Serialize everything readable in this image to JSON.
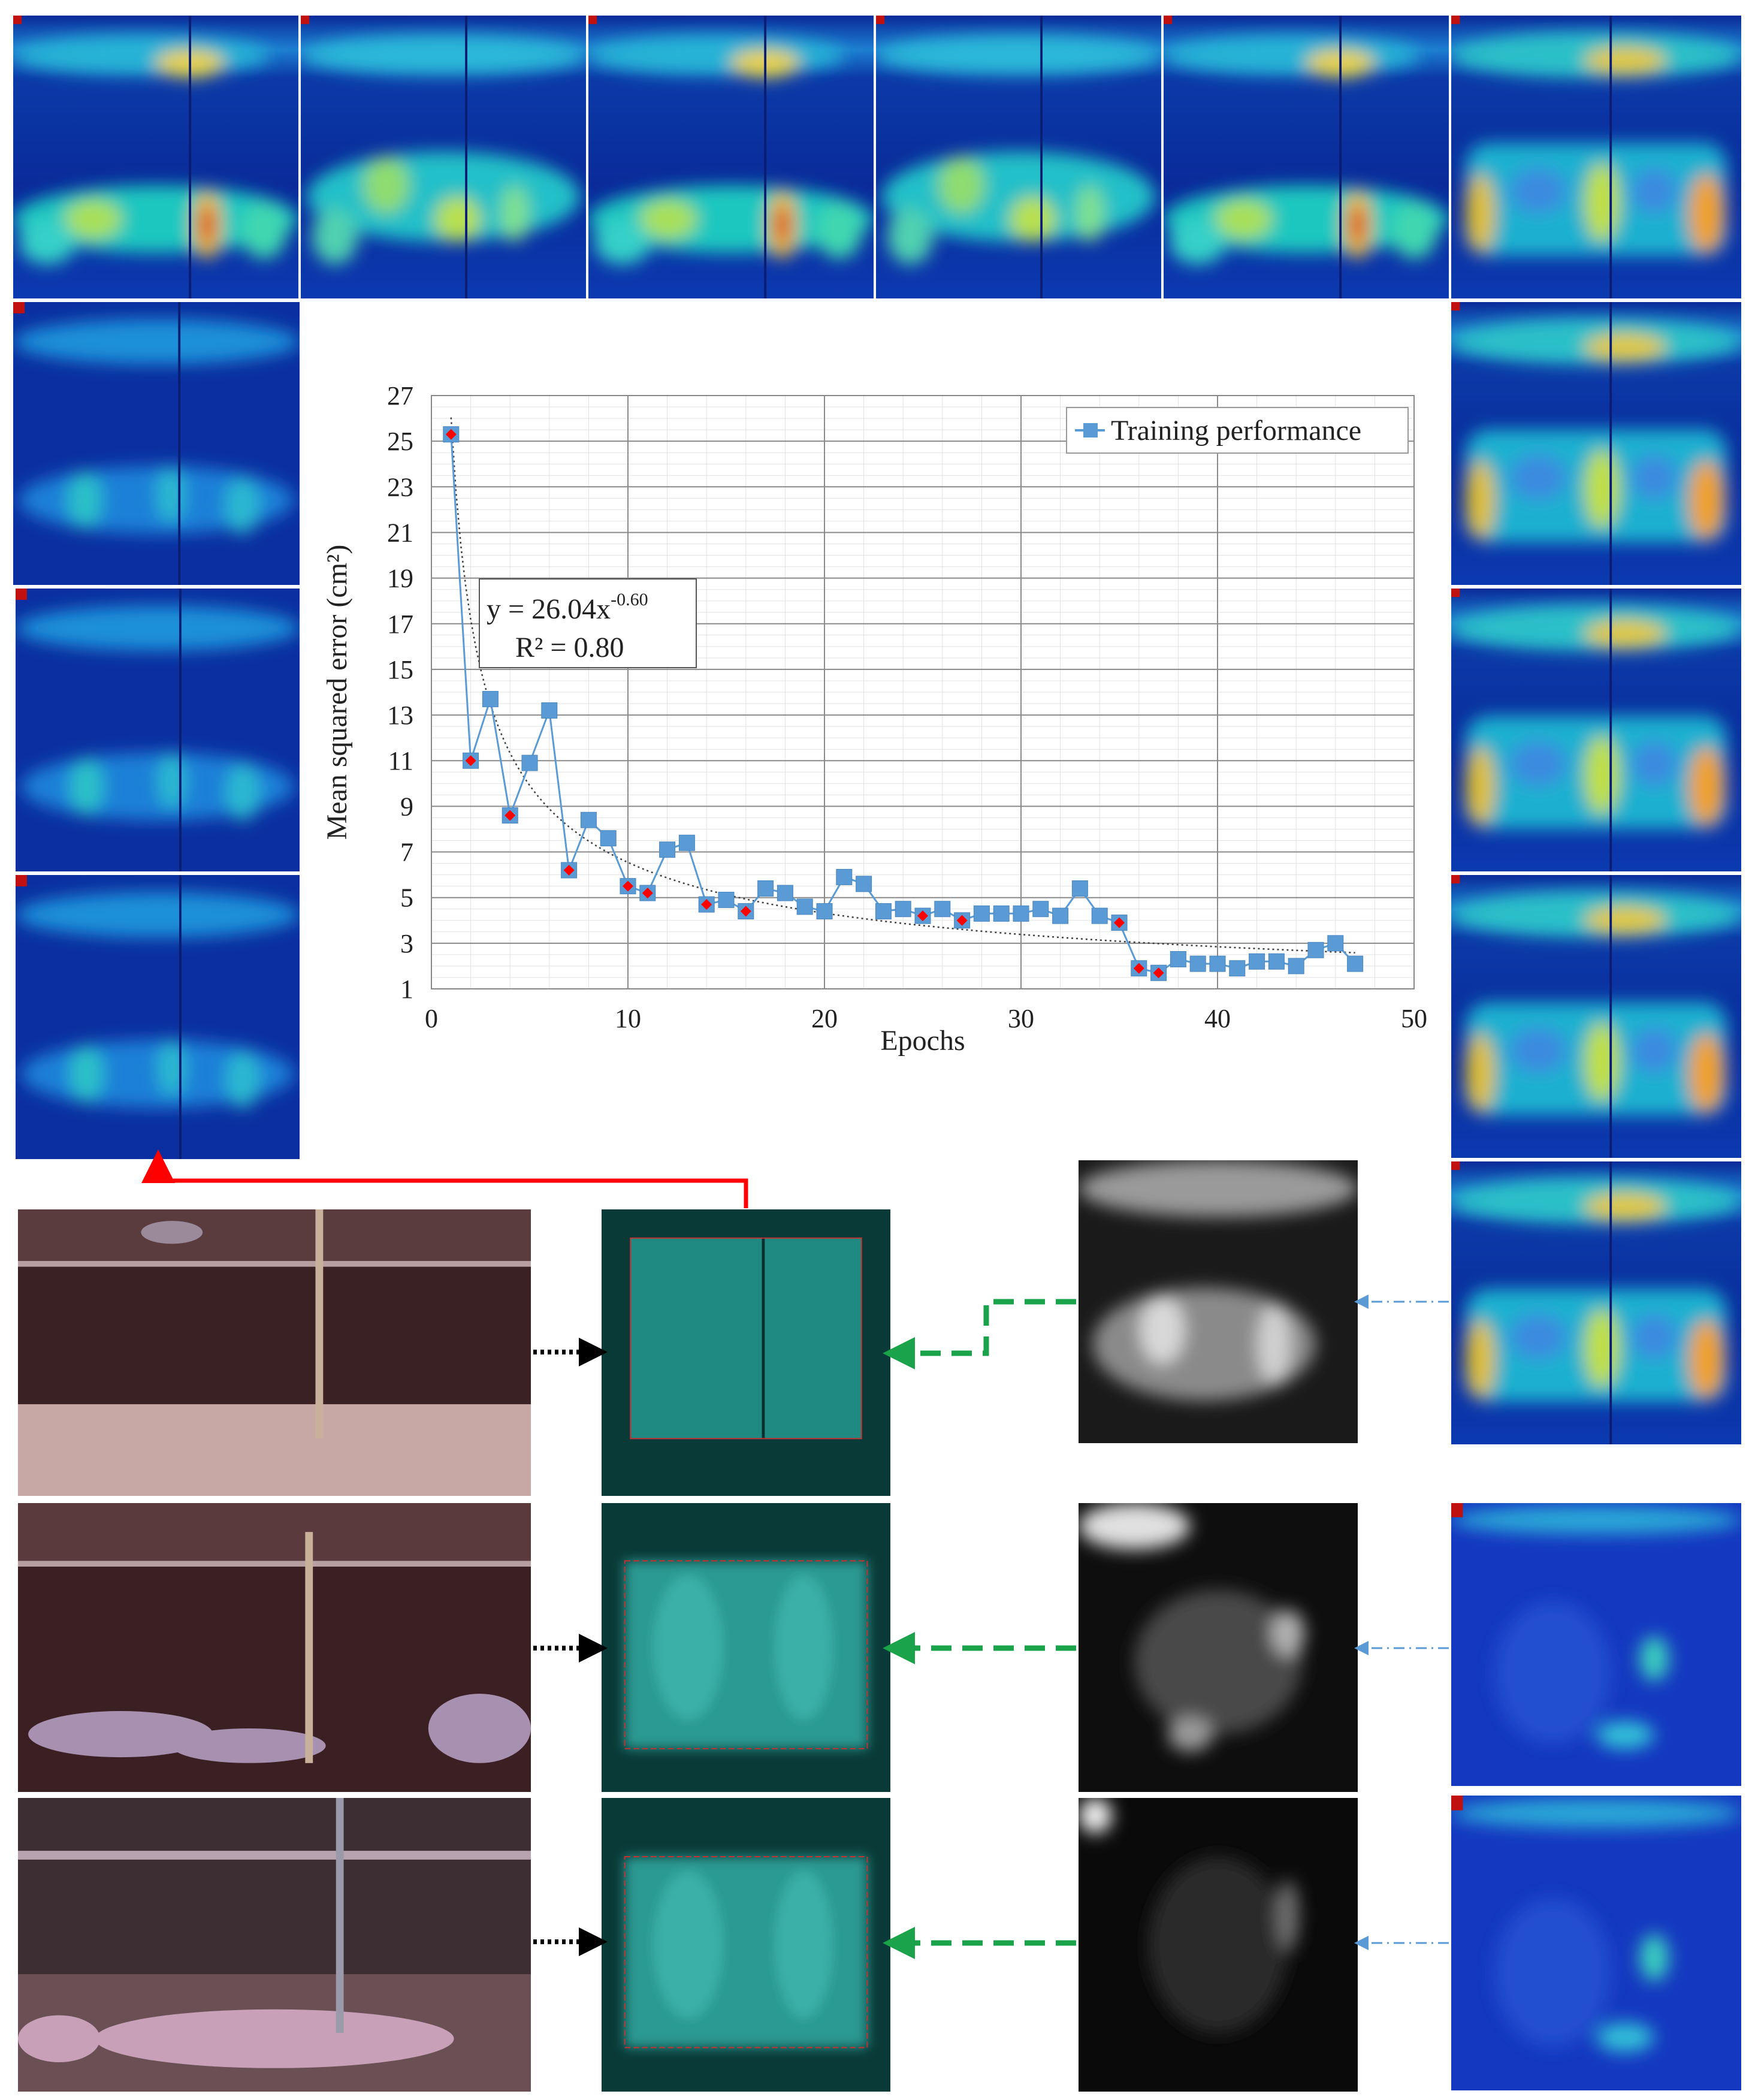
{
  "colors": {
    "series": "#5b9bd5",
    "series_marker": "#5b9bd5",
    "highlight_marker": "#ff0000",
    "trend": "#404040",
    "arrow_red": "#ff0000",
    "arrow_green": "#1aa34a",
    "arrow_blue": "#5b9bd5",
    "arrow_black": "#000000"
  },
  "chart_data": {
    "type": "scatter",
    "xlabel": "Epochs",
    "ylabel": "Mean squared error (cm²)",
    "xlim": [
      0,
      50
    ],
    "ylim": [
      1,
      27
    ],
    "x_ticks": [
      "0",
      "10",
      "20",
      "30",
      "40",
      "50"
    ],
    "y_ticks": [
      "1",
      "3",
      "5",
      "7",
      "9",
      "11",
      "13",
      "15",
      "17",
      "19",
      "21",
      "23",
      "25",
      "27"
    ],
    "grid": true,
    "legend_position": "top-right",
    "series": [
      {
        "name": "Training performance",
        "x": [
          1,
          2,
          3,
          4,
          5,
          6,
          7,
          8,
          9,
          10,
          11,
          12,
          13,
          14,
          15,
          16,
          17,
          18,
          19,
          20,
          21,
          22,
          23,
          24,
          25,
          26,
          27,
          28,
          29,
          30,
          31,
          32,
          33,
          34,
          35,
          36,
          37,
          38,
          39,
          40,
          41,
          42,
          43,
          44,
          45,
          46,
          47
        ],
        "values": [
          25.3,
          11.0,
          13.7,
          8.6,
          10.9,
          13.2,
          6.2,
          8.4,
          7.6,
          5.5,
          5.2,
          7.1,
          7.4,
          4.7,
          4.9,
          4.4,
          5.4,
          5.2,
          4.6,
          4.4,
          5.9,
          5.6,
          4.4,
          4.5,
          4.2,
          4.5,
          4.0,
          4.3,
          4.3,
          4.3,
          4.5,
          4.2,
          5.4,
          4.2,
          3.9,
          1.9,
          1.7,
          2.3,
          2.1,
          2.1,
          1.9,
          2.2,
          2.2,
          2.0,
          2.7,
          3.0,
          2.1
        ]
      }
    ],
    "highlighted_epochs": [
      1,
      2,
      4,
      7,
      10,
      11,
      14,
      16,
      25,
      27,
      35,
      36,
      37
    ],
    "trendline": {
      "type": "power",
      "a": 26.04,
      "b": -0.6,
      "equation_text": "y = 26.04x",
      "equation_exponent": "-0.60",
      "r2_text": "R² = 0.80"
    }
  }
}
